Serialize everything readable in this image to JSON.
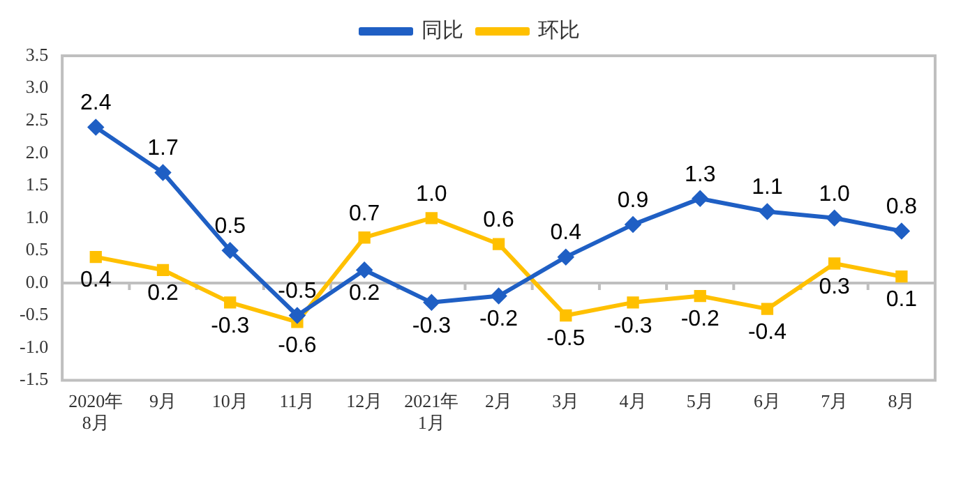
{
  "chart_data": {
    "type": "line",
    "categories": [
      "2020年\n8月",
      "9月",
      "10月",
      "11月",
      "12月",
      "2021年\n1月",
      "2月",
      "3月",
      "4月",
      "5月",
      "6月",
      "7月",
      "8月"
    ],
    "series": [
      {
        "name": "同比",
        "color": "#1f5fc4",
        "marker": "diamond",
        "values": [
          2.4,
          1.7,
          0.5,
          -0.5,
          0.2,
          -0.3,
          -0.2,
          0.4,
          0.9,
          1.3,
          1.1,
          1.0,
          0.8
        ],
        "value_labels": [
          "2.4",
          "1.7",
          "0.5",
          "-0.5",
          "0.2",
          "-0.3",
          "-0.2",
          "0.4",
          "0.9",
          "1.3",
          "1.1",
          "1.0",
          "0.8"
        ]
      },
      {
        "name": "环比",
        "color": "#ffc000",
        "marker": "square",
        "values": [
          0.4,
          0.2,
          -0.3,
          -0.6,
          0.7,
          1.0,
          0.6,
          -0.5,
          -0.3,
          -0.2,
          -0.4,
          0.3,
          0.1
        ],
        "value_labels": [
          "0.4",
          "0.2",
          "-0.3",
          "-0.6",
          "0.7",
          "1.0",
          "0.6",
          "-0.5",
          "-0.3",
          "-0.2",
          "-0.4",
          "0.3",
          "0.1"
        ]
      }
    ],
    "ylim": [
      -1.5,
      3.5
    ],
    "yticks": [
      -1.5,
      {
        "value": -1,
        "label": "-1.0"
      },
      -0.5,
      {
        "value": 0,
        "label": "0.0"
      },
      0.5,
      {
        "value": 1,
        "label": "1.0"
      },
      1.5,
      {
        "value": 2,
        "label": "2.0"
      },
      2.5,
      {
        "value": 3,
        "label": "3.0"
      },
      3.5
    ],
    "ref_lines": [
      {
        "axis": "y",
        "value": 0,
        "color": "#bfbfbf"
      }
    ],
    "legend": "top"
  }
}
